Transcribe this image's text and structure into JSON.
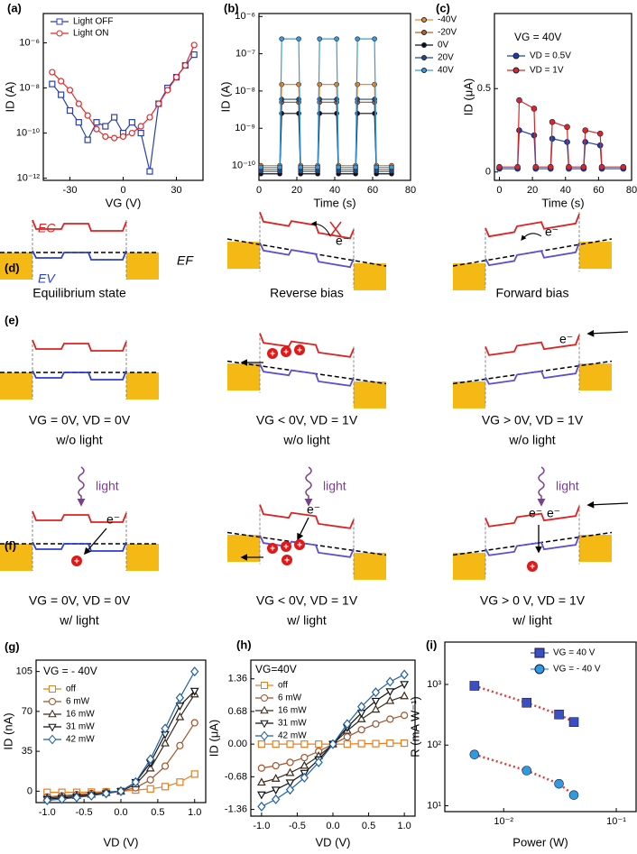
{
  "chart_data": [
    {
      "type": "line",
      "panel": "(a)",
      "xlabel": "VG (V)",
      "ylabel": "ID (A)",
      "ylog": true,
      "marker_fill": "hollow",
      "xlim": [
        -45,
        45
      ],
      "xticks": [
        -30,
        0,
        30
      ],
      "ylim": [
        8e-13,
        2e-05
      ],
      "yticks": [
        {
          "value": 1e-12,
          "label": "10⁻¹²"
        },
        {
          "value": 1e-10,
          "label": "10⁻¹⁰"
        },
        {
          "value": 1e-08,
          "label": "10⁻⁸"
        },
        {
          "value": 1e-06,
          "label": "10⁻⁶"
        }
      ],
      "x": [
        -40,
        -35,
        -30,
        -25,
        -20,
        -15,
        -10,
        -5,
        0,
        5,
        10,
        15,
        20,
        25,
        30,
        35,
        40
      ],
      "series": [
        {
          "name": "Light OFF",
          "color": "#2a3fb0",
          "marker": "square",
          "values": [
            1.5e-08,
            5e-09,
            1e-09,
            3e-10,
            5e-11,
            3e-10,
            2e-10,
            5e-10,
            1e-10,
            3e-10,
            1e-10,
            2e-12,
            2e-09,
            1e-08,
            3e-08,
            1e-07,
            3e-07
          ]
        },
        {
          "name": "Light ON",
          "color": "#e02a2a",
          "marker": "circle",
          "values": [
            5e-08,
            2e-08,
            8e-09,
            2e-09,
            6e-10,
            1.5e-10,
            7e-11,
            6e-11,
            7e-11,
            1e-10,
            2e-10,
            5e-10,
            2e-09,
            8e-09,
            3e-08,
            1e-07,
            8e-07
          ]
        }
      ]
    },
    {
      "type": "line",
      "panel": "(b)",
      "xlabel": "Time (s)",
      "ylabel": "ID (A)",
      "ylog": true,
      "marker_fill": "filled",
      "xlim": [
        0,
        80
      ],
      "xticks": [
        0,
        20,
        40,
        60,
        80
      ],
      "ylim": [
        4e-11,
        1.2e-06
      ],
      "yticks": [
        {
          "value": 1e-10,
          "label": "10⁻¹⁰"
        },
        {
          "value": 1e-09,
          "label": "10⁻⁹"
        },
        {
          "value": 1e-08,
          "label": "10⁻⁸"
        },
        {
          "value": 1e-07,
          "label": "10⁻⁷"
        },
        {
          "value": 1e-06,
          "label": "10⁻⁶"
        }
      ],
      "x": [
        1,
        11,
        12,
        21,
        22,
        31,
        32,
        41,
        42,
        51,
        52,
        61,
        62,
        70
      ],
      "series": [
        {
          "name": "-40V",
          "color": "#f08a24",
          "marker": "circle",
          "values": [
            1e-10,
            1e-10,
            1.5e-08,
            1.5e-08,
            1e-10,
            1e-10,
            1.5e-08,
            1.5e-08,
            1e-10,
            1e-10,
            1.5e-08,
            1.5e-08,
            1e-10,
            1e-10
          ]
        },
        {
          "name": "-20V",
          "color": "#b5651d",
          "marker": "circle",
          "values": [
            8e-11,
            8e-11,
            5e-09,
            5e-09,
            8e-11,
            8e-11,
            5e-09,
            5e-09,
            8e-11,
            8e-11,
            5e-09,
            5e-09,
            8e-11,
            8e-11
          ]
        },
        {
          "name": "0V",
          "color": "#111111",
          "marker": "circle",
          "values": [
            6e-11,
            6e-11,
            2.5e-09,
            2.5e-09,
            6e-11,
            6e-11,
            2.5e-09,
            2.5e-09,
            6e-11,
            6e-11,
            2.5e-09,
            2.5e-09,
            6e-11,
            6e-11
          ]
        },
        {
          "name": "20V",
          "color": "#1f4e79",
          "marker": "circle",
          "values": [
            7e-11,
            7e-11,
            6e-09,
            6e-09,
            7e-11,
            7e-11,
            6e-09,
            6e-09,
            7e-11,
            7e-11,
            6e-09,
            6e-09,
            7e-11,
            7e-11
          ]
        },
        {
          "name": "40V",
          "color": "#3a9ad9",
          "marker": "circle",
          "values": [
            9e-11,
            9e-11,
            2.5e-07,
            2.5e-07,
            9e-11,
            9e-11,
            2.5e-07,
            2.5e-07,
            9e-11,
            9e-11,
            2.5e-07,
            2.5e-07,
            9e-11,
            9e-11
          ]
        }
      ]
    },
    {
      "type": "line",
      "panel": "(c)",
      "xlabel": "Time (s)",
      "ylabel": "ID (μA)",
      "annotation": "VG = 40V",
      "marker_fill": "filled",
      "xlim": [
        -3,
        80
      ],
      "xticks": [
        0,
        20,
        40,
        60,
        80
      ],
      "ylim": [
        -0.05,
        0.95
      ],
      "yticks": [
        0,
        0.5
      ],
      "x": [
        0,
        11,
        12,
        21,
        22,
        31,
        32,
        41,
        42,
        51,
        52,
        61,
        62,
        75
      ],
      "series": [
        {
          "name": "VD = 0.5V",
          "color": "#1f3fa8",
          "marker": "circle",
          "values": [
            0.02,
            0.02,
            0.25,
            0.22,
            0.02,
            0.02,
            0.2,
            0.18,
            0.02,
            0.02,
            0.18,
            0.16,
            0.02,
            0.02
          ]
        },
        {
          "name": "VD = 1V",
          "color": "#d62828",
          "marker": "circle",
          "values": [
            0.03,
            0.03,
            0.43,
            0.38,
            0.03,
            0.03,
            0.3,
            0.27,
            0.03,
            0.03,
            0.25,
            0.23,
            0.03,
            0.03
          ]
        }
      ]
    },
    {
      "type": "line",
      "panel": "(g)",
      "xlabel": "VD (V)",
      "ylabel": "ID (nA)",
      "annotation": "VG = - 40V",
      "marker_fill": "hollow",
      "xlim": [
        -1.15,
        1.15
      ],
      "xticks": [
        {
          "value": -1,
          "label": "-1.0"
        },
        -0.5,
        {
          "value": 0,
          "label": "0.0"
        },
        0.5,
        {
          "value": 1,
          "label": "1.0"
        }
      ],
      "ylim": [
        -10,
        115
      ],
      "yticks": [
        0,
        35,
        70,
        105
      ],
      "x": [
        -1,
        -0.8,
        -0.6,
        -0.4,
        -0.2,
        0,
        0.2,
        0.4,
        0.6,
        0.8,
        1
      ],
      "series": [
        {
          "name": "off",
          "color": "#e87d1e",
          "marker": "square",
          "values": [
            -1,
            -1,
            -1,
            -0.8,
            -0.5,
            0,
            1,
            2,
            4,
            8,
            15
          ]
        },
        {
          "name": "6 mW",
          "color": "#a0522d",
          "marker": "circle",
          "values": [
            -5,
            -4,
            -3,
            -2,
            -1,
            0,
            3,
            10,
            22,
            40,
            60
          ]
        },
        {
          "name": "16 mW",
          "color": "#3a2a1a",
          "marker": "triangle",
          "values": [
            -6,
            -5,
            -4,
            -3,
            -1.5,
            0,
            6,
            20,
            42,
            65,
            85
          ]
        },
        {
          "name": "31 mW",
          "color": "#111111",
          "marker": "triangle-down",
          "values": [
            -7,
            -6,
            -5,
            -3.5,
            -2,
            0,
            8,
            25,
            50,
            75,
            88
          ]
        },
        {
          "name": "42 mW",
          "color": "#1f5fa8",
          "marker": "diamond",
          "values": [
            -8,
            -7,
            -5.5,
            -4,
            -2,
            0,
            8,
            28,
            55,
            82,
            105
          ]
        }
      ]
    },
    {
      "type": "line",
      "panel": "(h)",
      "xlabel": "VD (V)",
      "ylabel": "ID (μA)",
      "annotation": "VG=40V",
      "marker_fill": "hollow",
      "xlim": [
        -1.15,
        1.15
      ],
      "xticks": [
        {
          "value": -1,
          "label": "-1.0"
        },
        -0.5,
        {
          "value": 0,
          "label": "0.0"
        },
        0.5,
        {
          "value": 1,
          "label": "1.0"
        }
      ],
      "ylim": [
        -1.5,
        1.75
      ],
      "yticks": [
        -1.36,
        -0.68,
        {
          "value": 0,
          "label": "0.00"
        },
        0.68,
        1.36
      ],
      "x": [
        -1,
        -0.8,
        -0.6,
        -0.4,
        -0.2,
        0,
        0.2,
        0.4,
        0.6,
        0.8,
        1
      ],
      "series": [
        {
          "name": "off",
          "color": "#e87d1e",
          "marker": "square",
          "values": [
            0,
            0,
            0,
            0,
            0,
            0,
            0,
            0.01,
            0.01,
            0.02,
            0.02
          ]
        },
        {
          "name": "6 mW",
          "color": "#a0522d",
          "marker": "circle",
          "values": [
            -0.5,
            -0.45,
            -0.38,
            -0.28,
            -0.15,
            0,
            0.15,
            0.3,
            0.42,
            0.52,
            0.6
          ]
        },
        {
          "name": "16 mW",
          "color": "#3a2a1a",
          "marker": "triangle",
          "values": [
            -0.8,
            -0.72,
            -0.6,
            -0.45,
            -0.25,
            0,
            0.28,
            0.52,
            0.72,
            0.9,
            1.0
          ]
        },
        {
          "name": "31 mW",
          "color": "#111111",
          "marker": "triangle-down",
          "values": [
            -1.05,
            -0.95,
            -0.8,
            -0.6,
            -0.32,
            0,
            0.35,
            0.65,
            0.9,
            1.1,
            1.25
          ]
        },
        {
          "name": "42 mW",
          "color": "#1f5fa8",
          "marker": "diamond",
          "values": [
            -1.3,
            -1.15,
            -0.95,
            -0.7,
            -0.38,
            0,
            0.42,
            0.78,
            1.08,
            1.3,
            1.45
          ]
        }
      ]
    },
    {
      "type": "scatter",
      "panel": "(i)",
      "xlabel": "Power (W)",
      "ylabel": "R (mA W⁻¹)",
      "xlog": true,
      "ylog": true,
      "marker_fill": "filled",
      "line_style": "dotted",
      "line_color": "#e53935",
      "xlim": [
        0.003,
        0.15
      ],
      "xticks": [
        {
          "value": 0.01,
          "label": "10⁻²"
        },
        {
          "value": 0.1,
          "label": "10⁻¹"
        }
      ],
      "ylim": [
        8,
        5000
      ],
      "yticks": [
        {
          "value": 10,
          "label": "10¹"
        },
        {
          "value": 100,
          "label": "10²"
        },
        {
          "value": 1000,
          "label": "10³"
        }
      ],
      "x": [
        0.0055,
        0.016,
        0.031,
        0.042
      ],
      "series": [
        {
          "name": "VG = 40 V",
          "color": "#3b4fc4",
          "marker": "square",
          "values": [
            950,
            500,
            320,
            240
          ]
        },
        {
          "name": "VG = - 40 V",
          "color": "#2e9be0",
          "marker": "circle",
          "values": [
            70,
            38,
            23,
            15
          ]
        }
      ]
    }
  ],
  "diagrams": {
    "d": {
      "panel": "(d)",
      "ec_label": "EC",
      "ev_label": "EV",
      "ef_label": "EF",
      "electron": "e⁻",
      "captions": [
        "Equilibrium state",
        "Reverse bias",
        "Forward bias"
      ]
    },
    "e": {
      "panel": "(e)",
      "electron": "e⁻",
      "hole": "+",
      "captions": [
        [
          "VG = 0V, VD = 0V",
          "w/o light"
        ],
        [
          "VG < 0V, VD = 1V",
          "w/o light"
        ],
        [
          "VG > 0V, VD = 1V",
          "w/o light"
        ]
      ]
    },
    "f": {
      "panel": "(f)",
      "light": "light",
      "electron": "e⁻",
      "hole": "+",
      "captions": [
        [
          "VG = 0V, VD = 0V",
          "w/ light"
        ],
        [
          "VG < 0V, VD = 1V",
          "w/ light"
        ],
        [
          "VG > 0 V, VD = 1V",
          "w/ light"
        ]
      ]
    }
  }
}
